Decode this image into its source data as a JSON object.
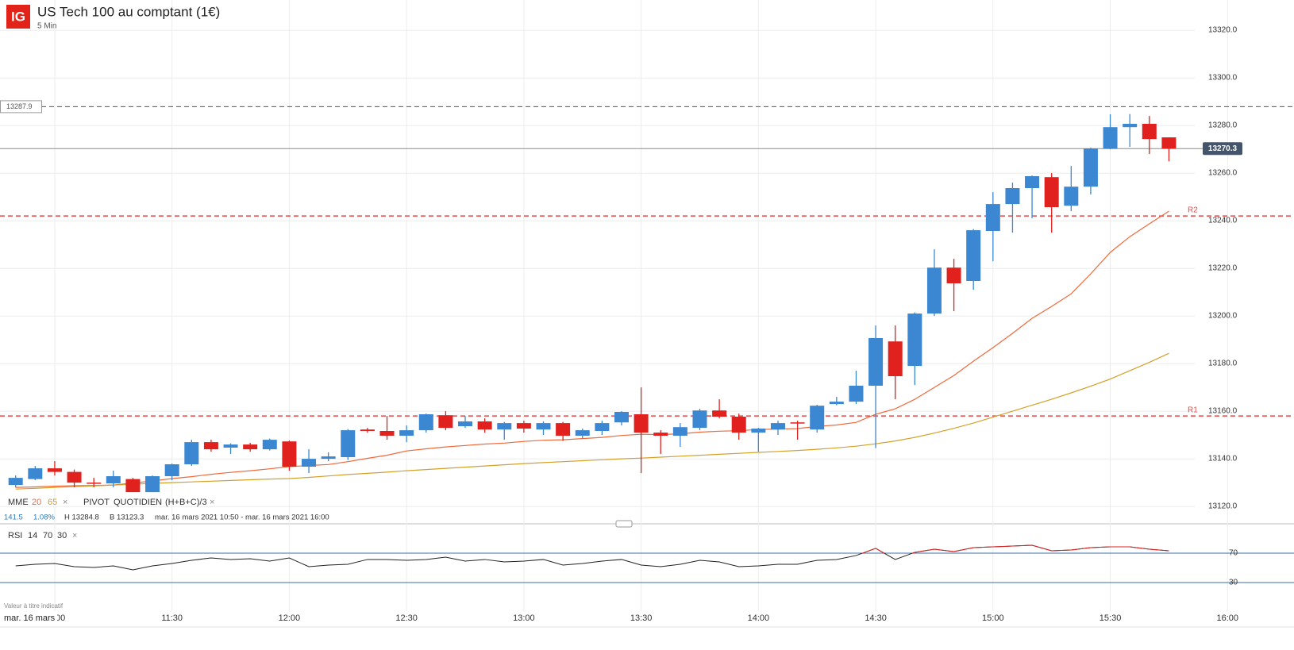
{
  "header": {
    "logo": "IG",
    "title": "US Tech 100 au comptant (1€)",
    "interval": "5 Min"
  },
  "indicators": {
    "mme": {
      "label": "MME",
      "periods": [
        20,
        65
      ],
      "close": "×"
    },
    "pivot": {
      "label": "PIVOT",
      "period": "QUOTIDIEN",
      "formula": "(H+B+C)/3",
      "close": "×"
    }
  },
  "stats": {
    "change": 141.5,
    "change_pct": "1.08%",
    "high": "H 13284.8",
    "low": "B 13123.3",
    "range": "mar. 16 mars 2021 10:50 - mar. 16 mars 2021 16:00"
  },
  "rsi_legend": {
    "label": "RSI",
    "params": [
      14,
      70,
      30
    ],
    "close": "×"
  },
  "disclaimer": "Valeur à titre indicatif",
  "cursor_date": "mar. 16 mars",
  "chart_data": [
    {
      "type": "candlestick",
      "x": [
        "10:50",
        "10:55",
        "11:00",
        "11:05",
        "11:10",
        "11:15",
        "11:20",
        "11:25",
        "11:30",
        "11:35",
        "11:40",
        "11:45",
        "11:50",
        "11:55",
        "12:00",
        "12:05",
        "12:10",
        "12:15",
        "12:20",
        "12:25",
        "12:30",
        "12:35",
        "12:40",
        "12:45",
        "12:50",
        "12:55",
        "13:00",
        "13:05",
        "13:10",
        "13:15",
        "13:20",
        "13:25",
        "13:30",
        "13:35",
        "13:40",
        "13:45",
        "13:50",
        "13:55",
        "14:00",
        "14:05",
        "14:10",
        "14:15",
        "14:20",
        "14:25",
        "14:30",
        "14:35",
        "14:40",
        "14:45",
        "14:50",
        "14:55",
        "15:00",
        "15:05",
        "15:10",
        "15:15",
        "15:20",
        "15:25",
        "15:30",
        "15:35",
        "15:40",
        "15:45"
      ],
      "open": [
        13129,
        13131.5,
        13136,
        13134.5,
        13130,
        13129.7,
        13131.5,
        13126,
        13132.7,
        13137.7,
        13147,
        13144.7,
        13146,
        13144,
        13147.3,
        13136.7,
        13140,
        13140.7,
        13152.3,
        13151.7,
        13149.7,
        13152,
        13158.3,
        13153.7,
        13155.7,
        13152.3,
        13155,
        13152.3,
        13155,
        13149.7,
        13151.7,
        13155.3,
        13158.7,
        13151,
        13149.7,
        13153,
        13160.3,
        13157.7,
        13151,
        13152.3,
        13155.3,
        13152.3,
        13163,
        13164,
        13170.7,
        13189.3,
        13179,
        13201,
        13220.3,
        13214.7,
        13235.7,
        13247,
        13253.7,
        13258.3,
        13246.3,
        13254.3,
        13270.3,
        13279.3,
        13280.7,
        13275
      ],
      "high": [
        13133,
        13137,
        13139,
        13135.5,
        13132,
        13135,
        13132,
        13133,
        13138,
        13148,
        13148,
        13146.5,
        13146.7,
        13148.5,
        13147.7,
        13144,
        13142.7,
        13152.5,
        13153,
        13158,
        13154,
        13159,
        13160,
        13158,
        13157,
        13155.5,
        13156,
        13155.7,
        13155.5,
        13152.7,
        13156,
        13160,
        13170,
        13152,
        13155,
        13161,
        13165,
        13159,
        13153,
        13156,
        13156,
        13162.7,
        13166,
        13177,
        13196,
        13196,
        13201.5,
        13228,
        13224,
        13236.5,
        13252,
        13256,
        13259,
        13260,
        13263,
        13270.7,
        13284.7,
        13284.8,
        13284,
        13275
      ],
      "low": [
        13128,
        13131,
        13133,
        13128,
        13128,
        13128,
        13126,
        13126,
        13131,
        13137,
        13143,
        13142,
        13143,
        13143.5,
        13135,
        13134,
        13139,
        13139.5,
        13151,
        13148,
        13147,
        13151,
        13152,
        13153,
        13151,
        13148,
        13151,
        13150,
        13147.5,
        13148.5,
        13150,
        13154,
        13134,
        13142,
        13145,
        13152,
        13157,
        13148,
        13143,
        13150,
        13148,
        13151,
        13162.5,
        13163,
        13144.5,
        13165,
        13171,
        13200,
        13202,
        13211,
        13223,
        13235,
        13241,
        13235,
        13244,
        13251,
        13270,
        13271,
        13268,
        13265
      ],
      "close": [
        13132,
        13136,
        13134.5,
        13130,
        13129.7,
        13132.7,
        13126,
        13132.7,
        13137.7,
        13147,
        13144,
        13146,
        13144,
        13148,
        13136.7,
        13140,
        13141,
        13152,
        13151.7,
        13149.7,
        13152,
        13158.7,
        13153,
        13155.7,
        13152.3,
        13155,
        13152.7,
        13155,
        13149.7,
        13152,
        13155,
        13159.7,
        13151,
        13149.7,
        13153.3,
        13160.3,
        13157.7,
        13151,
        13152.7,
        13155,
        13155,
        13162.3,
        13164,
        13170.7,
        13190.7,
        13174.7,
        13201,
        13220.3,
        13213.7,
        13236,
        13247,
        13253.7,
        13258.7,
        13245.7,
        13254.3,
        13270.3,
        13279.3,
        13280.7,
        13274.3,
        13270.3
      ],
      "up_color": "#3b87d2",
      "down_color": "#e0211d",
      "overlays": [
        {
          "color": "#f0693a",
          "values": [
            13128,
            13128.2,
            13128.5,
            13128.7,
            13128.8,
            13129,
            13129.8,
            13130.7,
            13131.7,
            13132.5,
            13133.5,
            13134.3,
            13135,
            13135.8,
            13136.7,
            13137.2,
            13137.6,
            13138.8,
            13140.2,
            13141.5,
            13143.3,
            13144.2,
            13145,
            13145.6,
            13146.2,
            13146.6,
            13147.3,
            13147.8,
            13148,
            13148.5,
            13149,
            13149.8,
            13150.3,
            13150.2,
            13150.5,
            13151.2,
            13151.6,
            13151.8,
            13152.3,
            13152.5,
            13152.7,
            13153.6,
            13154.2,
            13155.3,
            13158.7,
            13161,
            13165,
            13170,
            13175,
            13181,
            13186.7,
            13192.7,
            13199,
            13204,
            13209.3,
            13217.7,
            13226.7,
            13233.3,
            13238.7,
            13244
          ]
        },
        {
          "color": "#d3a12a",
          "values": [
            13127.3,
            13127.6,
            13128,
            13128.3,
            13128.6,
            13129,
            13129.3,
            13129.7,
            13130,
            13130.3,
            13130.6,
            13130.9,
            13131.2,
            13131.5,
            13131.7,
            13132.2,
            13132.8,
            13133.4,
            13133.9,
            13134.4,
            13135,
            13135.5,
            13136,
            13136.5,
            13137,
            13137.5,
            13138,
            13138.4,
            13138.8,
            13139.2,
            13139.6,
            13140,
            13140.3,
            13140.7,
            13141.1,
            13141.5,
            13141.9,
            13142.3,
            13142.7,
            13143.1,
            13143.5,
            13144,
            13144.6,
            13145.3,
            13146.3,
            13147.5,
            13149,
            13150.8,
            13152.8,
            13155,
            13157.5,
            13160,
            13162.5,
            13165,
            13167.7,
            13170.5,
            13173.5,
            13177,
            13180.5,
            13184.3
          ]
        }
      ],
      "reference_lines": [
        {
          "value": 13287.9,
          "color": "#555555"
        }
      ],
      "last_price": {
        "value": 13270.3,
        "color": "#8c8c8c",
        "box_color": "#44546a"
      },
      "pivots": [
        {
          "label": "R2",
          "value": 13242,
          "color": "#e84a4a"
        },
        {
          "label": "R1",
          "value": 13158,
          "color": "#e84a4a"
        }
      ],
      "xlim": [
        "10:46",
        "16:17"
      ],
      "xticks": [
        "11:00",
        "11:30",
        "12:00",
        "12:30",
        "13:00",
        "13:30",
        "14:00",
        "14:30",
        "15:00",
        "15:30",
        "16:00"
      ],
      "ylim": [
        13112.7,
        13332.7
      ],
      "yticks": [
        {
          "value": 13120,
          "label": "13120.0"
        },
        {
          "value": 13140,
          "label": "13140.0"
        },
        {
          "value": 13160,
          "label": "13160.0"
        },
        {
          "value": 13180,
          "label": "13180.0"
        },
        {
          "value": 13200,
          "label": "13200.0"
        },
        {
          "value": 13220,
          "label": "13220.0"
        },
        {
          "value": 13240,
          "label": "13240.0"
        },
        {
          "value": 13260,
          "label": "13260.0"
        },
        {
          "value": 13280,
          "label": "13280.0"
        },
        {
          "value": 13300,
          "label": "13300.0"
        },
        {
          "value": 13320,
          "label": "13320.0"
        }
      ],
      "grid": true
    },
    {
      "type": "line",
      "x": [
        "10:50",
        "10:55",
        "11:00",
        "11:05",
        "11:10",
        "11:15",
        "11:20",
        "11:25",
        "11:30",
        "11:35",
        "11:40",
        "11:45",
        "11:50",
        "11:55",
        "12:00",
        "12:05",
        "12:10",
        "12:15",
        "12:20",
        "12:25",
        "12:30",
        "12:35",
        "12:40",
        "12:45",
        "12:50",
        "12:55",
        "13:00",
        "13:05",
        "13:10",
        "13:15",
        "13:20",
        "13:25",
        "13:30",
        "13:35",
        "13:40",
        "13:45",
        "13:50",
        "13:55",
        "14:00",
        "14:05",
        "14:10",
        "14:15",
        "14:20",
        "14:25",
        "14:30",
        "14:35",
        "14:40",
        "14:45",
        "14:50",
        "14:55",
        "15:00",
        "15:05",
        "15:10",
        "15:15",
        "15:20",
        "15:25",
        "15:30",
        "15:35",
        "15:40",
        "15:45"
      ],
      "values": [
        52.7,
        54.9,
        55.9,
        51.6,
        50.5,
        52.7,
        47.3,
        52.7,
        55.9,
        60.3,
        63.5,
        61.4,
        62.4,
        59.2,
        63.5,
        51.6,
        53.8,
        54.9,
        61.4,
        61.4,
        60.3,
        61.4,
        64.6,
        59.2,
        61.4,
        58.1,
        59.2,
        61.4,
        53.8,
        55.9,
        59.2,
        61.4,
        53.8,
        51.6,
        54.9,
        60.3,
        58.1,
        51.6,
        52.7,
        54.9,
        54.9,
        60.3,
        61.4,
        66.8,
        76.5,
        61.4,
        71.1,
        75.4,
        72.2,
        77.6,
        78.6,
        79.7,
        80.8,
        73.2,
        74.3,
        77.6,
        78.6,
        78.6,
        75.4,
        73.2
      ],
      "color": "#222222",
      "overbought_color": "#e0211d",
      "level_color": "#3b6ea8",
      "xlim": [
        "10:46",
        "16:17"
      ],
      "ylim": [
        -8.9,
        107.8
      ],
      "yticks": [
        30,
        70
      ]
    }
  ]
}
